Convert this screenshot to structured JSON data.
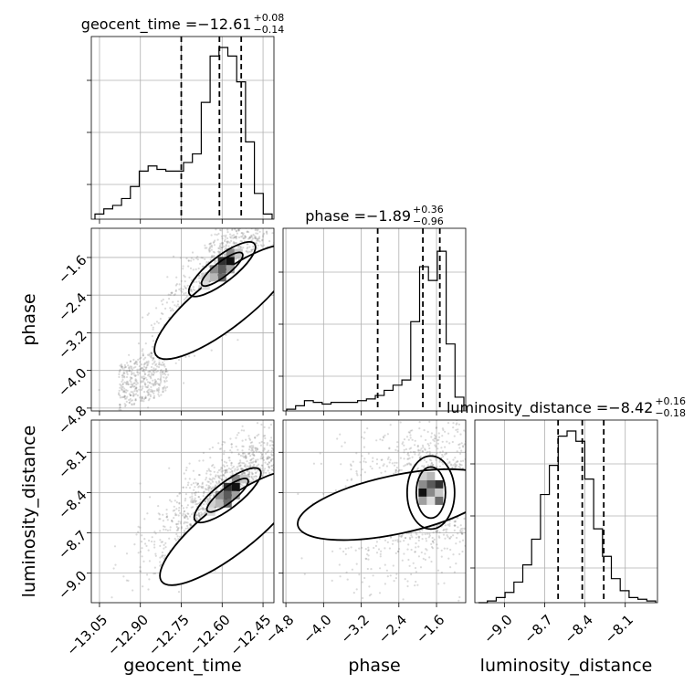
{
  "chart_data": {
    "type": "corner",
    "parameters": [
      "geocent_time",
      "phase",
      "luminosity_distance"
    ],
    "axis_labels": [
      "geocent_time",
      "phase",
      "luminosity_distance"
    ],
    "ranges": {
      "geocent_time": [
        -13.08,
        -12.41
      ],
      "phase": [
        -4.86,
        -0.98
      ],
      "luminosity_distance": [
        -9.22,
        -7.86
      ]
    },
    "ticks": {
      "geocent_time": [
        -13.05,
        -12.9,
        -12.75,
        -12.6,
        -12.45
      ],
      "phase": [
        -4.8,
        -4.0,
        -3.2,
        -2.4,
        -1.6
      ],
      "luminosity_distance": [
        -9.0,
        -8.7,
        -8.4,
        -8.1
      ]
    },
    "tick_labels": {
      "geocent_time": [
        "−13.05",
        "−12.90",
        "−12.75",
        "−12.60",
        "−12.45"
      ],
      "phase": [
        "−4.8",
        "−4.0",
        "−3.2",
        "−2.4",
        "−1.6"
      ],
      "luminosity_distance": [
        "−9.0",
        "−8.7",
        "−8.4",
        "−8.1"
      ]
    },
    "titles": [
      {
        "param": "geocent_time",
        "prefix": "geocent_time = ",
        "median": "−12.61",
        "plus": "+0.08",
        "minus": "−0.14"
      },
      {
        "param": "phase",
        "prefix": "phase = ",
        "median": "−1.89",
        "plus": "+0.36",
        "minus": "−0.96"
      },
      {
        "param": "luminosity_distance",
        "prefix": "luminosity_distance = ",
        "median": "−8.42",
        "plus": "+0.16",
        "minus": "−0.18"
      }
    ],
    "quantiles": {
      "geocent_time": [
        -12.75,
        -12.61,
        -12.53
      ],
      "phase": [
        -2.85,
        -1.89,
        -1.53
      ],
      "luminosity_distance": [
        -8.6,
        -8.42,
        -8.26
      ]
    },
    "histograms": {
      "geocent_time": [
        0.03,
        0.06,
        0.08,
        0.12,
        0.19,
        0.28,
        0.31,
        0.29,
        0.28,
        0.28,
        0.33,
        0.38,
        0.68,
        0.95,
        1.0,
        0.95,
        0.8,
        0.45,
        0.15,
        0.03
      ],
      "phase": [
        0.01,
        0.03,
        0.06,
        0.05,
        0.04,
        0.05,
        0.05,
        0.05,
        0.06,
        0.07,
        0.09,
        0.12,
        0.15,
        0.18,
        0.52,
        0.84,
        0.76,
        0.93,
        0.39,
        0.08
      ],
      "luminosity_distance": [
        0.0,
        0.01,
        0.03,
        0.06,
        0.12,
        0.22,
        0.37,
        0.63,
        0.8,
        0.97,
        1.0,
        0.94,
        0.72,
        0.43,
        0.27,
        0.14,
        0.07,
        0.03,
        0.02,
        0.01
      ]
    },
    "grid": true
  }
}
